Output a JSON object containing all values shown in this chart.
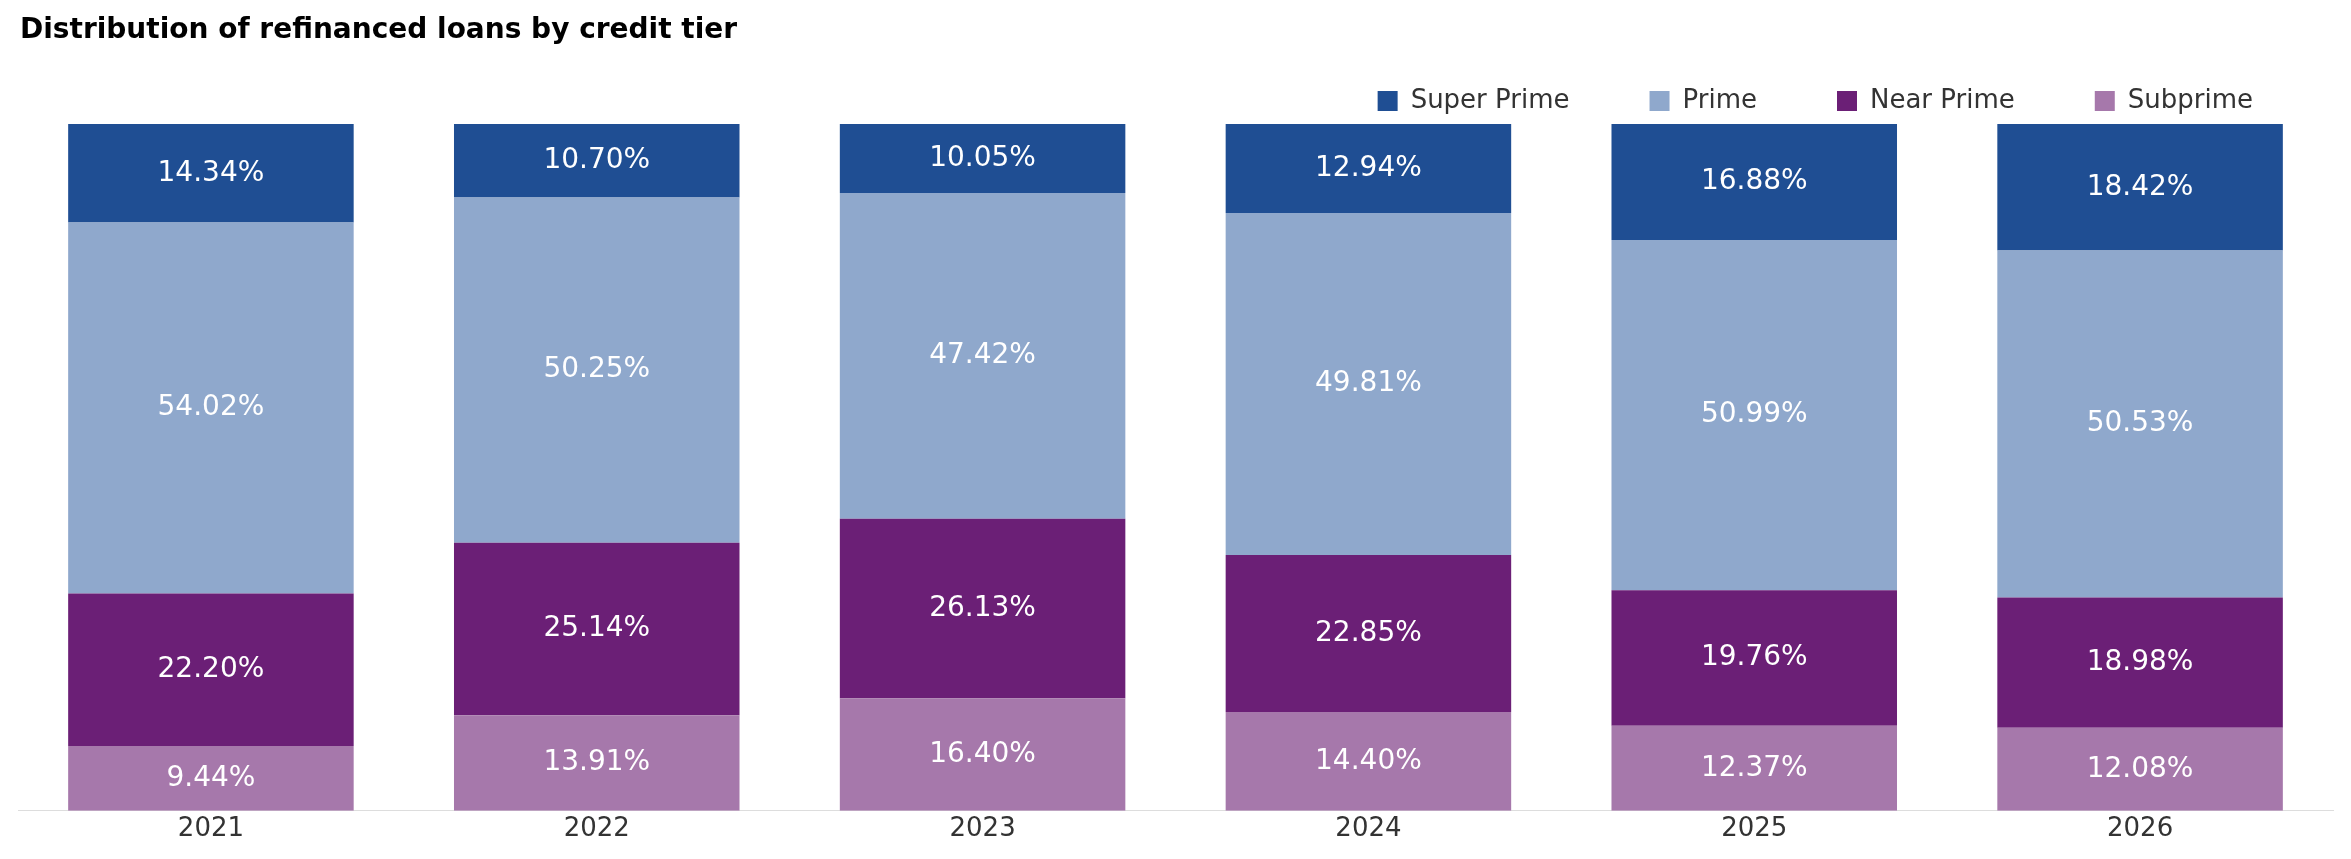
{
  "chart_data": {
    "type": "bar",
    "title": "Distribution of refinanced loans by credit tier",
    "categories": [
      "2021",
      "2022",
      "2023",
      "2024",
      "2025",
      "2026"
    ],
    "stacked": true,
    "legend": "top right",
    "grid": false,
    "tick_labels": "x",
    "series": [
      {
        "name": "Subprime",
        "color": "#a678ab",
        "values": [
          9.44,
          13.91,
          16.4,
          14.4,
          12.37,
          12.08
        ],
        "value_labels": [
          "9.44%",
          "13.91%",
          "16.40%",
          "14.40%",
          "12.37%",
          "12.08%"
        ]
      },
      {
        "name": "Near Prime",
        "color": "#6b1f76",
        "values": [
          22.2,
          25.14,
          26.13,
          22.85,
          19.76,
          18.98
        ],
        "value_labels": [
          "22.20%",
          "25.14%",
          "26.13%",
          "22.85%",
          "19.76%",
          "18.98%"
        ]
      },
      {
        "name": "Prime",
        "color": "#8fa8cc",
        "values": [
          54.02,
          50.25,
          47.42,
          49.81,
          50.99,
          50.53
        ],
        "value_labels": [
          "54.02%",
          "50.25%",
          "47.42%",
          "49.81%",
          "50.99%",
          "50.53%"
        ]
      },
      {
        "name": "Super Prime",
        "color": "#1f4e93",
        "values": [
          14.34,
          10.7,
          10.05,
          12.94,
          16.88,
          18.42
        ],
        "value_labels": [
          "14.34%",
          "10.70%",
          "10.05%",
          "12.94%",
          "16.88%",
          "18.42%"
        ]
      }
    ]
  }
}
